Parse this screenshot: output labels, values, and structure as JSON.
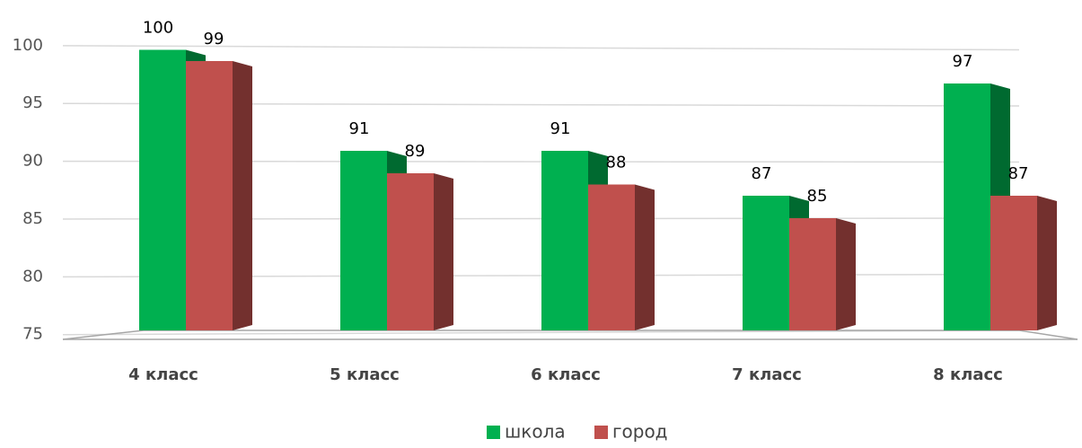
{
  "chart_data": {
    "type": "bar",
    "categories": [
      "4 класс",
      "5 класс",
      "6 класс",
      "7 класс",
      "8 класс"
    ],
    "series": [
      {
        "name": "школа",
        "color": "#00b050",
        "values": [
          100,
          91,
          91,
          87,
          97
        ]
      },
      {
        "name": "город",
        "color": "#c0504d",
        "values": [
          99,
          89,
          88,
          85,
          87
        ]
      }
    ],
    "ylim": [
      75,
      100
    ],
    "yticks": [
      75,
      80,
      85,
      90,
      95,
      100
    ],
    "grid": true,
    "legend": "bottom"
  }
}
